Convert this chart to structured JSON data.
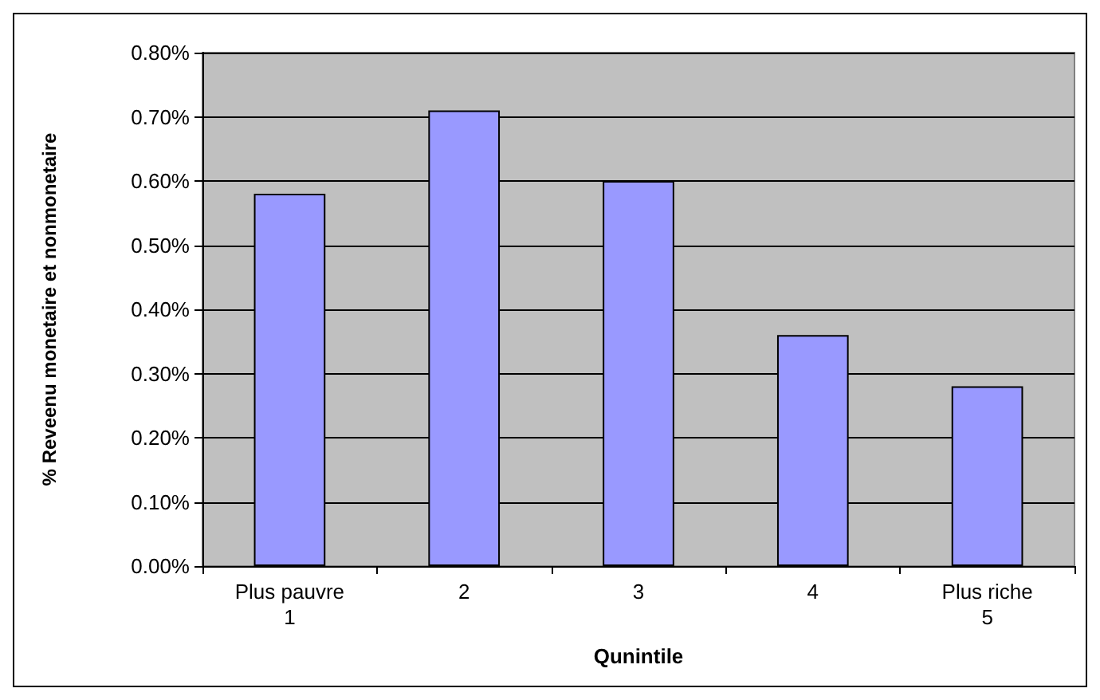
{
  "chart_data": {
    "type": "bar",
    "xlabel": "Qunintile",
    "ylabel": "% Reveenu monetaire et nonmonetaire",
    "categories": [
      "Plus pauvre\n1",
      "2",
      "3",
      "4",
      "Plus riche\n5"
    ],
    "values": [
      0.58,
      0.71,
      0.6,
      0.36,
      0.28
    ],
    "color": "#9999ff",
    "ylim": [
      0,
      0.8
    ],
    "yticks": [
      {
        "value": 0,
        "label": "0.00%"
      },
      {
        "value": 0.1,
        "label": "0.10%"
      },
      {
        "value": 0.2,
        "label": "0.20%"
      },
      {
        "value": 0.3,
        "label": "0.30%"
      },
      {
        "value": 0.4,
        "label": "0.40%"
      },
      {
        "value": 0.5,
        "label": "0.50%"
      },
      {
        "value": 0.6,
        "label": "0.60%"
      },
      {
        "value": 0.7,
        "label": "0.70%"
      },
      {
        "value": 0.8,
        "label": "0.80%"
      }
    ],
    "grid": "y"
  }
}
